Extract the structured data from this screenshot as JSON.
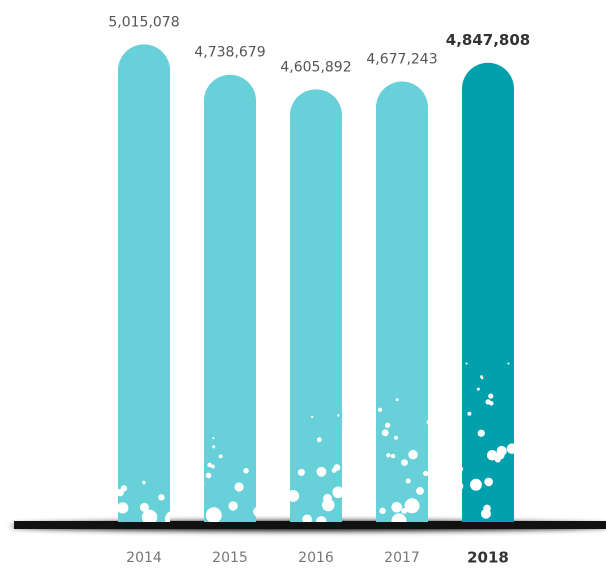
{
  "chart_data": {
    "type": "bar",
    "categories": [
      "2014",
      "2015",
      "2016",
      "2017",
      "2018"
    ],
    "values": [
      5015078,
      4738679,
      4605892,
      4677243,
      4847808
    ],
    "value_labels": [
      "5,015,078",
      "4,738,679",
      "4,605,892",
      "4,677,243",
      "4,847,808"
    ],
    "colors": [
      "#67d0d8",
      "#67d0d8",
      "#67d0d8",
      "#67d0d8",
      "#00a0ad"
    ],
    "emphasis": [
      false,
      false,
      false,
      false,
      true
    ],
    "ylim": [
      670000,
      5100000
    ]
  }
}
